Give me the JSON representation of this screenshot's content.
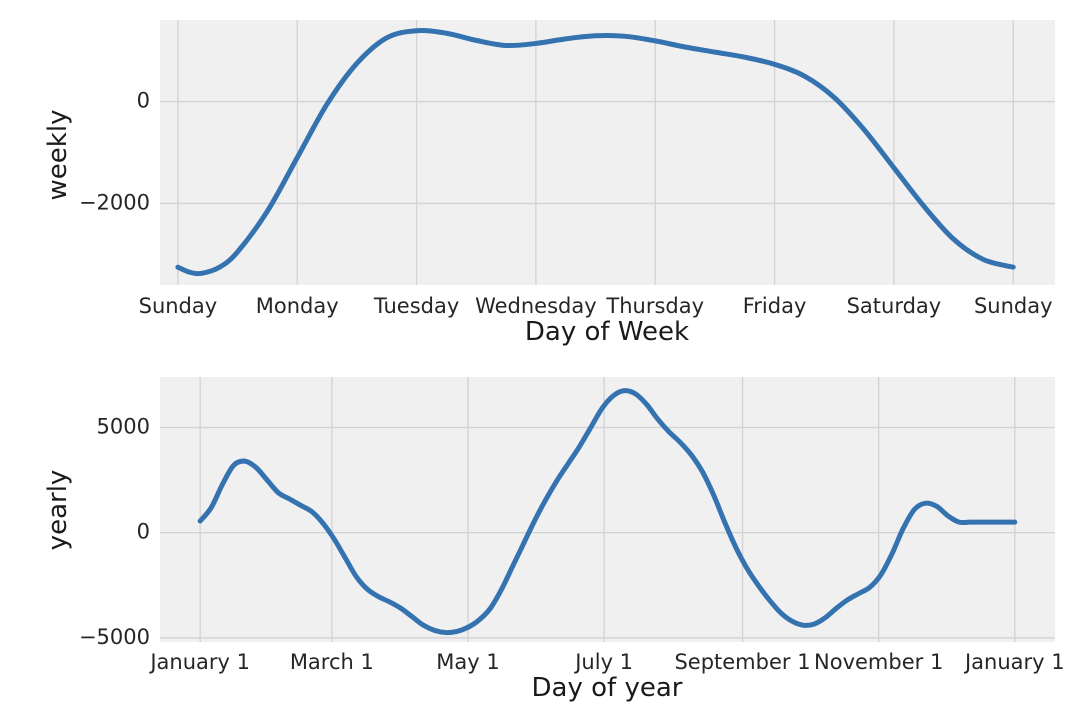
{
  "chart_data": [
    {
      "type": "line",
      "name": "weekly-component",
      "xlabel": "Day of Week",
      "ylabel": "weekly",
      "x_ticks": [
        "Sunday",
        "Monday",
        "Tuesday",
        "Wednesday",
        "Thursday",
        "Friday",
        "Saturday",
        "Sunday"
      ],
      "y_ticks": [
        {
          "value": 0,
          "label": "0"
        },
        {
          "value": -2000,
          "label": "−2000"
        }
      ],
      "xlim": [
        -0.15,
        7.35
      ],
      "ylim": [
        -3600,
        1600
      ],
      "grid": true,
      "color": "#3572b0",
      "series": [
        {
          "x": [
            0,
            0.1,
            0.2,
            0.35,
            0.5,
            0.75,
            1.0,
            1.25,
            1.5,
            1.75,
            2.0,
            2.25,
            2.5,
            2.75,
            3.0,
            3.25,
            3.5,
            3.75,
            4.0,
            4.25,
            4.5,
            4.75,
            5.0,
            5.25,
            5.5,
            5.75,
            6.0,
            6.25,
            6.5,
            6.75,
            7.0
          ],
          "y": [
            -3250,
            -3350,
            -3370,
            -3250,
            -2950,
            -2150,
            -1100,
            -50,
            750,
            1250,
            1390,
            1340,
            1200,
            1100,
            1140,
            1230,
            1290,
            1280,
            1190,
            1070,
            970,
            870,
            730,
            500,
            80,
            -550,
            -1300,
            -2050,
            -2700,
            -3100,
            -3250
          ]
        }
      ]
    },
    {
      "type": "line",
      "name": "yearly-component",
      "xlabel": "Day of year",
      "ylabel": "yearly",
      "x_ticks": [
        {
          "value": 0,
          "label": "January 1"
        },
        {
          "value": 59,
          "label": "March 1"
        },
        {
          "value": 120,
          "label": "May 1"
        },
        {
          "value": 181,
          "label": "July 1"
        },
        {
          "value": 243,
          "label": "September 1"
        },
        {
          "value": 304,
          "label": "November 1"
        },
        {
          "value": 365,
          "label": "January 1"
        }
      ],
      "y_ticks": [
        {
          "value": 5000,
          "label": "5000"
        },
        {
          "value": 0,
          "label": "0"
        },
        {
          "value": -5000,
          "label": "−5000"
        }
      ],
      "xlim": [
        -18,
        383
      ],
      "ylim": [
        -5200,
        7400
      ],
      "grid": true,
      "color": "#3572b0",
      "series": [
        {
          "x": [
            0,
            5,
            10,
            15,
            20,
            25,
            30,
            35,
            40,
            45,
            50,
            55,
            60,
            65,
            70,
            75,
            80,
            85,
            90,
            95,
            100,
            105,
            110,
            115,
            120,
            125,
            130,
            135,
            140,
            145,
            150,
            155,
            160,
            165,
            170,
            175,
            180,
            185,
            190,
            195,
            200,
            205,
            210,
            215,
            220,
            225,
            230,
            235,
            240,
            245,
            250,
            255,
            260,
            265,
            270,
            275,
            280,
            285,
            290,
            295,
            300,
            305,
            310,
            315,
            320,
            325,
            330,
            335,
            340,
            345,
            350,
            355,
            360,
            365
          ],
          "y": [
            550,
            1200,
            2300,
            3200,
            3400,
            3100,
            2500,
            1900,
            1600,
            1300,
            1000,
            450,
            -300,
            -1200,
            -2100,
            -2700,
            -3050,
            -3300,
            -3600,
            -4000,
            -4400,
            -4650,
            -4750,
            -4700,
            -4500,
            -4150,
            -3600,
            -2700,
            -1600,
            -500,
            600,
            1600,
            2500,
            3300,
            4100,
            5000,
            5900,
            6500,
            6750,
            6600,
            6100,
            5400,
            4800,
            4300,
            3700,
            2900,
            1800,
            500,
            -700,
            -1700,
            -2500,
            -3200,
            -3800,
            -4200,
            -4400,
            -4350,
            -4050,
            -3600,
            -3200,
            -2900,
            -2600,
            -2000,
            -1000,
            200,
            1100,
            1400,
            1250,
            800,
            500,
            500,
            500,
            500,
            500,
            500
          ]
        }
      ]
    }
  ]
}
